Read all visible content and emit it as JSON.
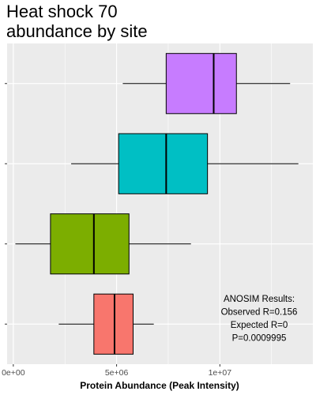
{
  "title": "Heat shock 70\nabundance by site",
  "chart_data": {
    "type": "boxplot",
    "orientation": "horizontal",
    "xlabel": "Protein Abundance (Peak Intensity)",
    "ylabel": "",
    "xlim": [
      -300000,
      14500000
    ],
    "xticks": [
      0,
      5000000,
      10000000
    ],
    "xtick_labels": [
      "0e+00",
      "5e+06",
      "1e+07"
    ],
    "grid": true,
    "legend": "none",
    "series": [
      {
        "color": "#C77CFF",
        "whisker_low": 5300000,
        "q1": 7400000,
        "median": 9700000,
        "q3": 10800000,
        "whisker_high": 13400000
      },
      {
        "color": "#00BFC4",
        "whisker_low": 2800000,
        "q1": 5100000,
        "median": 7400000,
        "q3": 9400000,
        "whisker_high": 13800000
      },
      {
        "color": "#7CAE00",
        "whisker_low": 100000,
        "q1": 1800000,
        "median": 3900000,
        "q3": 5600000,
        "whisker_high": 8600000
      },
      {
        "color": "#F8766D",
        "whisker_low": 2200000,
        "q1": 3900000,
        "median": 4900000,
        "q3": 5800000,
        "whisker_high": 6800000
      }
    ],
    "annotation": [
      "ANOSIM Results:",
      "Observed R=0.156",
      "Expected R=0",
      "P=0.0009995"
    ]
  }
}
